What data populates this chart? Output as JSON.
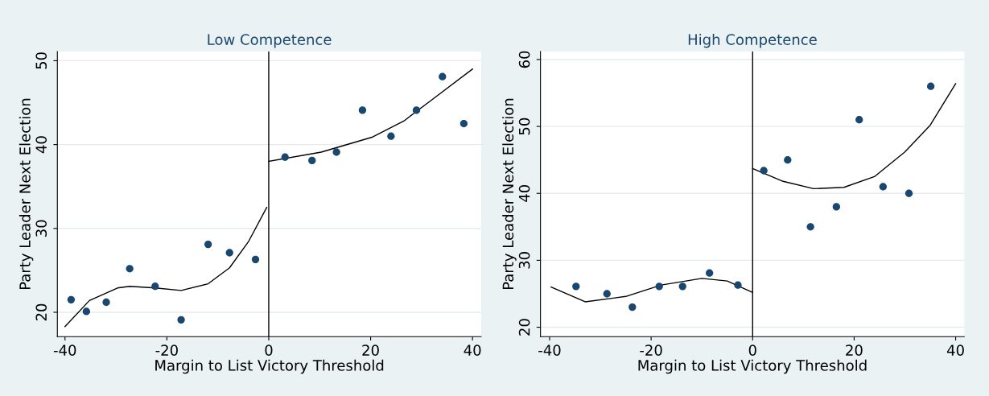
{
  "chart_data": [
    {
      "type": "scatter",
      "title": "Low Competence",
      "xlabel": "Margin to List Victory Threshold",
      "ylabel": "Party Leader Next Election",
      "xlim": [
        -41.5,
        41.7
      ],
      "ylim": [
        17.1,
        51.1
      ],
      "xticks": [
        -40,
        -20,
        0,
        20,
        40
      ],
      "yticks": [
        20,
        30,
        40,
        50
      ],
      "grid": "y",
      "marker": "circle",
      "series": [
        {
          "color": "#1a476f",
          "x": [
            -38.8,
            -35.8,
            -31.9,
            -27.3,
            -22.3,
            -17.2,
            -11.9,
            -7.7,
            -2.6,
            3.2,
            8.5,
            13.3,
            18.4,
            24.0,
            29.0,
            34.1,
            38.3
          ],
          "values": [
            21.5,
            20.1,
            21.2,
            25.2,
            23.1,
            19.1,
            28.1,
            27.1,
            26.3,
            38.5,
            38.1,
            39.1,
            44.1,
            41.0,
            44.1,
            48.1,
            42.5
          ]
        },
        {
          "type": "line",
          "color": "#000000",
          "marker": "none",
          "x": [
            -40,
            -35.2,
            -29.7,
            -27.3,
            -22.3,
            -17.2,
            -11.9,
            -7.7,
            -4.0,
            -0.4
          ],
          "values": [
            18.3,
            21.4,
            22.9,
            23.1,
            22.9,
            22.6,
            23.4,
            25.3,
            28.4,
            32.5
          ]
        },
        {
          "type": "line",
          "color": "#000000",
          "marker": "none",
          "x": [
            0,
            10.3,
            20.4,
            26.5,
            32.6,
            40
          ],
          "values": [
            38.0,
            39.1,
            40.9,
            42.8,
            45.6,
            49.0
          ]
        }
      ],
      "ref_lines": [
        {
          "axis": "x",
          "value": 0,
          "color": "#000000"
        }
      ]
    },
    {
      "type": "scatter",
      "title": "High Competence",
      "xlabel": "Margin to List Victory Threshold",
      "ylabel": "Party Leader Next Election",
      "xlim": [
        -41.8,
        41.7
      ],
      "ylim": [
        18.6,
        61.2
      ],
      "xticks": [
        -40,
        -20,
        0,
        20,
        40
      ],
      "yticks": [
        20,
        30,
        40,
        50,
        60
      ],
      "grid": "y",
      "marker": "circle",
      "series": [
        {
          "color": "#1a476f",
          "x": [
            -34.8,
            -28.7,
            -23.7,
            -18.4,
            -13.8,
            -8.5,
            -2.9,
            2.2,
            6.9,
            11.4,
            16.5,
            21.0,
            25.7,
            30.8,
            35.1
          ],
          "values": [
            26.1,
            25.0,
            23.0,
            26.1,
            26.1,
            28.1,
            26.3,
            43.4,
            45.0,
            35.0,
            38.0,
            51.0,
            41.0,
            40.0,
            56.0
          ]
        },
        {
          "type": "line",
          "color": "#000000",
          "marker": "none",
          "x": [
            -39.7,
            -33,
            -25,
            -18,
            -10,
            -5,
            0
          ],
          "values": [
            26.0,
            23.8,
            24.6,
            26.3,
            27.3,
            26.9,
            25.2
          ]
        },
        {
          "type": "line",
          "color": "#000000",
          "marker": "none",
          "x": [
            0,
            6,
            12,
            18,
            24,
            30,
            35,
            40
          ],
          "values": [
            43.7,
            41.8,
            40.7,
            40.9,
            42.5,
            46.2,
            50.2,
            56.4
          ]
        }
      ],
      "ref_lines": [
        {
          "axis": "x",
          "value": 0,
          "color": "#000000"
        }
      ]
    }
  ]
}
